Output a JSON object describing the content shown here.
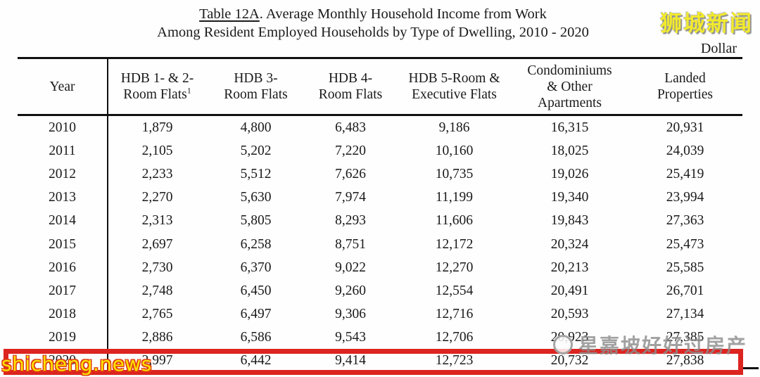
{
  "title": {
    "prefix": "Table 12A",
    "suffix": ". Average Monthly Household Income from Work",
    "line2": "Among Resident Employed Households by Type of Dwelling, 2010 - 2020"
  },
  "unit_label": "Dollar",
  "watermarks": {
    "site_badge": "狮城新闻",
    "site_url": "shicheng.news",
    "overlay_text": "星嘉坡好好过房产"
  },
  "colors": {
    "highlight_box_red": "#dc2420",
    "badge_yellow": "#f2ea2d",
    "url_yellow": "#ffe400",
    "url_outline_red": "#e04010",
    "overlay_gray": "#8c8c8c"
  },
  "table": {
    "columns": [
      {
        "line1": "Year",
        "line2": "",
        "line3": "",
        "sup": ""
      },
      {
        "line1": "HDB 1- & 2-",
        "line2": "Room Flats",
        "line3": "",
        "sup": "1"
      },
      {
        "line1": "HDB 3-",
        "line2": "Room Flats",
        "line3": "",
        "sup": ""
      },
      {
        "line1": "HDB 4-",
        "line2": "Room Flats",
        "line3": "",
        "sup": ""
      },
      {
        "line1": "HDB 5-Room &",
        "line2": "Executive Flats",
        "line3": "",
        "sup": ""
      },
      {
        "line1": "Condominiums",
        "line2": "& Other",
        "line3": "Apartments",
        "sup": ""
      },
      {
        "line1": "Landed",
        "line2": "Properties",
        "line3": "",
        "sup": ""
      }
    ],
    "rows": [
      {
        "year": "2010",
        "values": [
          "1,879",
          "4,800",
          "6,483",
          "9,186",
          "16,315",
          "20,931"
        ]
      },
      {
        "year": "2011",
        "values": [
          "2,105",
          "5,202",
          "7,220",
          "10,160",
          "18,025",
          "24,039"
        ]
      },
      {
        "year": "2012",
        "values": [
          "2,233",
          "5,512",
          "7,626",
          "10,735",
          "19,026",
          "25,419"
        ]
      },
      {
        "year": "2013",
        "values": [
          "2,270",
          "5,630",
          "7,974",
          "11,199",
          "19,340",
          "23,994"
        ]
      },
      {
        "year": "2014",
        "values": [
          "2,313",
          "5,805",
          "8,293",
          "11,606",
          "19,843",
          "27,363"
        ]
      },
      {
        "year": "2015",
        "values": [
          "2,697",
          "6,258",
          "8,751",
          "12,172",
          "20,324",
          "25,473"
        ]
      },
      {
        "year": "2016",
        "values": [
          "2,730",
          "6,370",
          "9,022",
          "12,270",
          "20,213",
          "25,585"
        ]
      },
      {
        "year": "2017",
        "values": [
          "2,748",
          "6,450",
          "9,260",
          "12,554",
          "20,491",
          "26,701"
        ]
      },
      {
        "year": "2018",
        "values": [
          "2,765",
          "6,497",
          "9,306",
          "12,716",
          "20,593",
          "27,134"
        ]
      },
      {
        "year": "2019",
        "values": [
          "2,886",
          "6,586",
          "9,543",
          "12,706",
          "20,923",
          "27,385"
        ]
      },
      {
        "year": "2020",
        "values": [
          "2,997",
          "6,442",
          "9,414",
          "12,723",
          "20,732",
          "27,838"
        ]
      }
    ],
    "highlighted_year": "2020"
  }
}
